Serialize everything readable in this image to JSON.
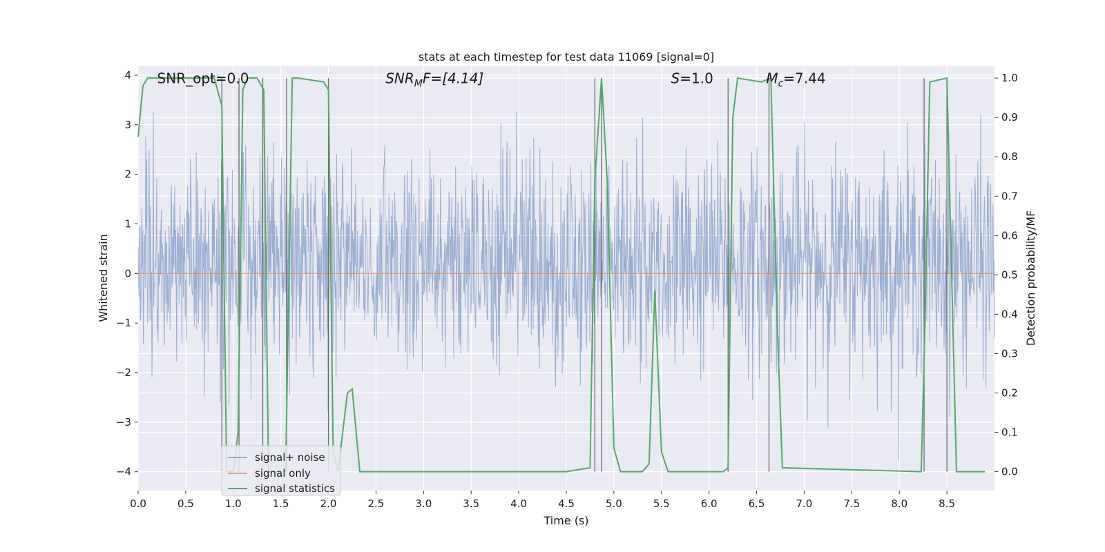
{
  "chart_data": {
    "type": "line",
    "title": "stats at each timestep for test data 11069 [signal=0]",
    "xlabel": "Time (s)",
    "ylabel": "Whitened strain",
    "y2label": "Detection probability/MF",
    "xlim": [
      0.0,
      9.0
    ],
    "ylim": [
      -4.38,
      4.18
    ],
    "y2lim": [
      -0.048,
      1.03
    ],
    "xticks": [
      0.0,
      0.5,
      1.0,
      1.5,
      2.0,
      2.5,
      3.0,
      3.5,
      4.0,
      4.5,
      5.0,
      5.5,
      6.0,
      6.5,
      7.0,
      7.5,
      8.0,
      8.5
    ],
    "xtick_labels": [
      "0.0",
      "0.5",
      "1.0",
      "1.5",
      "2.0",
      "2.5",
      "3.0",
      "3.5",
      "4.0",
      "4.5",
      "5.0",
      "5.5",
      "6.0",
      "6.5",
      "7.0",
      "7.5",
      "8.0",
      "8.5"
    ],
    "yticks": [
      -4,
      -3,
      -2,
      -1,
      0,
      1,
      2,
      3,
      4
    ],
    "ytick_labels": [
      "−4",
      "−3",
      "−2",
      "−1",
      "0",
      "1",
      "2",
      "3",
      "4"
    ],
    "y2ticks": [
      0.0,
      0.1,
      0.2,
      0.3,
      0.4,
      0.5,
      0.6,
      0.7,
      0.8,
      0.9,
      1.0
    ],
    "y2tick_labels": [
      "0.0",
      "0.1",
      "0.2",
      "0.3",
      "0.4",
      "0.5",
      "0.6",
      "0.7",
      "0.8",
      "0.9",
      "1.0"
    ],
    "grid": true,
    "legend_position": "bottom-left",
    "annotations": [
      {
        "x": 0.2,
        "y": 3.95,
        "text": "SNR_opt=0.0"
      },
      {
        "x": 2.6,
        "y": 3.95,
        "text": "SNR",
        "sub": "M",
        "rest": "F=[4.14]",
        "italic": true
      },
      {
        "x": 5.6,
        "y": 3.95,
        "text": "S",
        "rest": "=1.0",
        "italic": true
      },
      {
        "x": 6.6,
        "y": 3.95,
        "text": "M",
        "sub": "c",
        "rest": "=7.44",
        "italic": true
      }
    ],
    "series": [
      {
        "name": "signal+ noise",
        "color": "#4c72b0",
        "axis": "left",
        "kind": "noise",
        "typical_envelope": [
          -1.7,
          2.2
        ],
        "peak_range": [
          -3.8,
          3.7
        ],
        "samples": 1800
      },
      {
        "name": "signal only",
        "color": "#dd8452",
        "axis": "left",
        "x": [
          0.0,
          9.0
        ],
        "y": [
          0.0,
          0.0
        ]
      },
      {
        "name": "signal statistics",
        "color": "#55a868",
        "axis": "right",
        "x": [
          0.0,
          0.05,
          0.1,
          0.15,
          0.8,
          0.88,
          0.93,
          1.0,
          1.05,
          1.1,
          1.15,
          1.25,
          1.32,
          1.37,
          1.55,
          1.62,
          1.68,
          1.95,
          2.0,
          2.05,
          2.1,
          2.15,
          2.2,
          2.25,
          2.33,
          2.4,
          4.5,
          4.75,
          4.8,
          4.87,
          4.93,
          5.0,
          5.07,
          5.15,
          5.3,
          5.37,
          5.43,
          5.5,
          5.57,
          6.15,
          6.2,
          6.25,
          6.3,
          6.55,
          6.65,
          6.72,
          6.77,
          8.23,
          8.27,
          8.32,
          8.5,
          8.6,
          8.9
        ],
        "y": [
          0.85,
          0.98,
          1.0,
          1.0,
          1.0,
          0.93,
          0.0,
          0.0,
          0.1,
          0.97,
          1.0,
          1.0,
          0.97,
          0.0,
          0.0,
          1.0,
          1.0,
          0.99,
          0.97,
          0.05,
          0.0,
          0.1,
          0.2,
          0.21,
          0.0,
          0.0,
          0.0,
          0.01,
          0.74,
          1.0,
          0.74,
          0.06,
          0.0,
          0.0,
          0.0,
          0.02,
          0.46,
          0.05,
          0.0,
          0.0,
          0.01,
          0.9,
          1.0,
          0.99,
          1.0,
          0.35,
          0.01,
          0.0,
          0.38,
          0.99,
          1.0,
          0.0,
          0.0
        ]
      }
    ],
    "vertical_markers": [
      0.88,
      1.06,
      1.31,
      1.56,
      2.0,
      4.8,
      4.87,
      6.2,
      6.63,
      8.26,
      8.5
    ]
  }
}
